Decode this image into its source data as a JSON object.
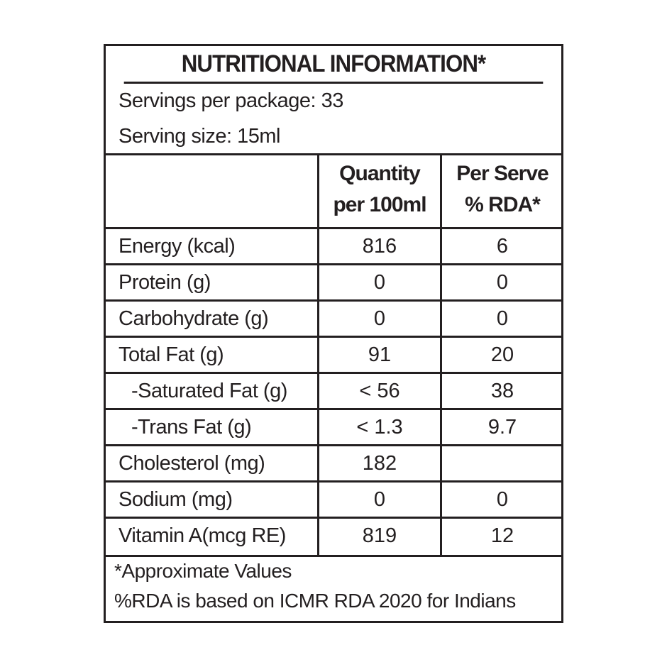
{
  "title": "NUTRITIONAL INFORMATION*",
  "servings": {
    "per_package": "Servings per package: 33",
    "serving_size": "Serving size: 15ml"
  },
  "columns": {
    "quantity_line1": "Quantity",
    "quantity_line2": "per 100ml",
    "rda_line1": "Per Serve",
    "rda_line2": "% RDA*"
  },
  "rows": [
    {
      "name": "Energy (kcal)",
      "qty": "816",
      "rda": "6"
    },
    {
      "name": "Protein (g)",
      "qty": "0",
      "rda": "0"
    },
    {
      "name": "Carbohydrate (g)",
      "qty": "0",
      "rda": "0"
    },
    {
      "name": "Total Fat (g)",
      "qty": "91",
      "rda": "20"
    },
    {
      "name": "-Saturated Fat (g)",
      "qty": "< 56",
      "rda": "38"
    },
    {
      "name": "-Trans Fat (g)",
      "qty": "< 1.3",
      "rda": "9.7"
    },
    {
      "name": "Cholesterol (mg)",
      "qty": "182",
      "rda": ""
    },
    {
      "name": "Sodium (mg)",
      "qty": "0",
      "rda": "0"
    },
    {
      "name": "Vitamin A(mcg RE)",
      "qty": "819",
      "rda": "12"
    }
  ],
  "footer": {
    "note1": "*Approximate Values",
    "note2": "%RDA is based on ICMR RDA 2020 for Indians"
  }
}
